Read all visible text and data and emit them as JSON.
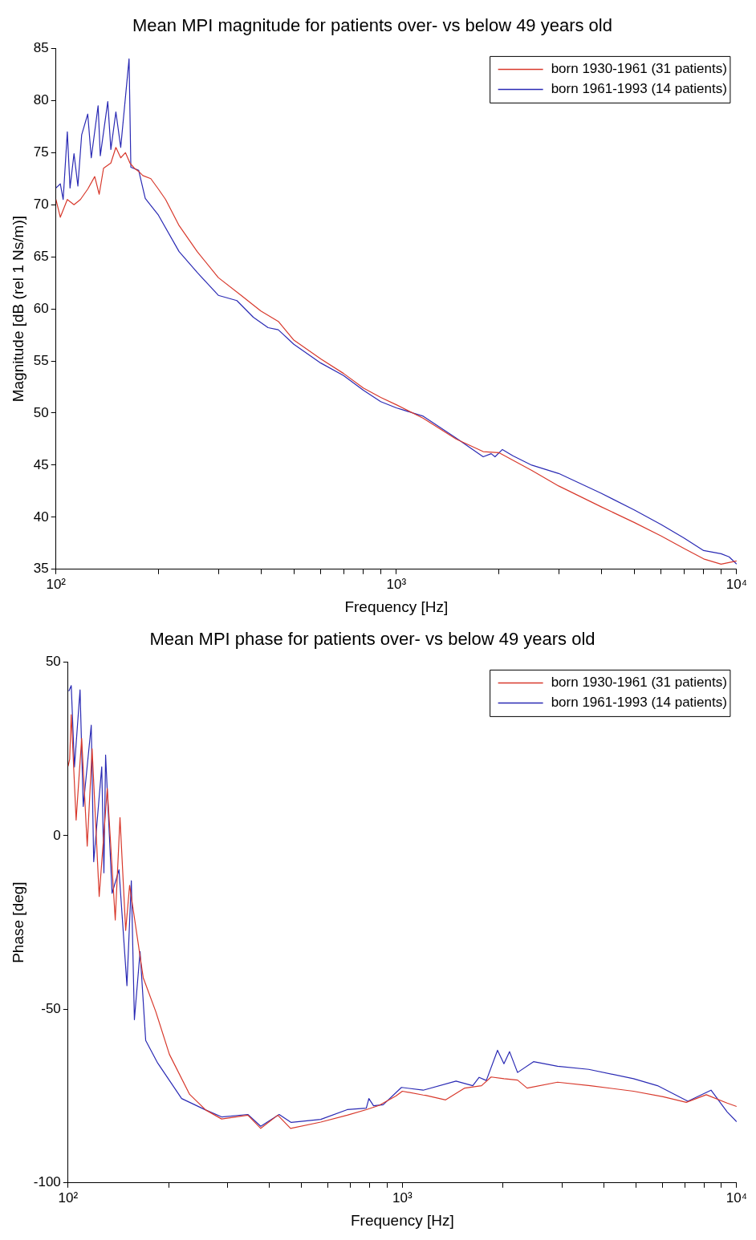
{
  "chart_data": [
    {
      "type": "line",
      "title": "Mean MPI magnitude for patients over- vs below 49 years old",
      "xlabel": "Frequency [Hz]",
      "ylabel": "Magnitude [dB (rel 1 Ns/m)]",
      "log": "x",
      "grid": false,
      "legend": "top right",
      "xlim": [
        100,
        10000
      ],
      "xticks": [
        {
          "value": 100,
          "label": "10²"
        },
        {
          "value": 200,
          "label": null
        },
        {
          "value": 300,
          "label": null
        },
        {
          "value": 400,
          "label": null
        },
        {
          "value": 500,
          "label": null
        },
        {
          "value": 600,
          "label": null
        },
        {
          "value": 700,
          "label": null
        },
        {
          "value": 800,
          "label": null
        },
        {
          "value": 900,
          "label": null
        },
        {
          "value": 1000,
          "label": "10³"
        },
        {
          "value": 2000,
          "label": null
        },
        {
          "value": 3000,
          "label": null
        },
        {
          "value": 4000,
          "label": null
        },
        {
          "value": 5000,
          "label": null
        },
        {
          "value": 6000,
          "label": null
        },
        {
          "value": 7000,
          "label": null
        },
        {
          "value": 8000,
          "label": null
        },
        {
          "value": 9000,
          "label": null
        },
        {
          "value": 10000,
          "label": "10⁴"
        }
      ],
      "ylim": [
        35,
        85
      ],
      "yticks": [
        35,
        40,
        45,
        50,
        55,
        60,
        65,
        70,
        75,
        80,
        85
      ],
      "series": [
        {
          "name": "born 1930-1961 (31 patients)",
          "color": "#d8392c",
          "x": [
            100,
            103,
            108,
            113,
            118,
            124,
            130,
            134,
            138,
            145,
            150,
            155,
            160,
            165,
            170,
            175,
            180,
            190,
            200,
            210,
            230,
            260,
            300,
            350,
            400,
            450,
            500,
            600,
            700,
            800,
            900,
            1000,
            1200,
            1500,
            1800,
            2000,
            2500,
            3000,
            4000,
            5000,
            6000,
            7000,
            8000,
            9000,
            10000
          ],
          "values": [
            70.5,
            68.8,
            70.5,
            70,
            70.5,
            71.5,
            72.7,
            71,
            73.5,
            74,
            75.5,
            74.5,
            75,
            74,
            73.5,
            73.2,
            72.8,
            72.5,
            71.5,
            70.5,
            68,
            65.5,
            63,
            61.3,
            59.8,
            58.8,
            57,
            55.2,
            53.8,
            52.4,
            51.5,
            50.8,
            49.5,
            47.5,
            46.3,
            46.2,
            44.5,
            43,
            41,
            39.5,
            38.2,
            37,
            36,
            35.5,
            35.8
          ]
        },
        {
          "name": "born 1961-1993 (14 patients)",
          "color": "#2a2ab4",
          "x": [
            100,
            103,
            105,
            108,
            110,
            113,
            116,
            119,
            124,
            127,
            133,
            135,
            142,
            145,
            150,
            155,
            164,
            166,
            175,
            183,
            200,
            230,
            260,
            300,
            340,
            380,
            420,
            450,
            500,
            600,
            700,
            800,
            900,
            1000,
            1200,
            1500,
            1800,
            1900,
            1950,
            2050,
            2200,
            2500,
            3000,
            4000,
            5000,
            6000,
            7000,
            8000,
            9000,
            9500,
            10000
          ],
          "values": [
            71.6,
            72,
            70.5,
            77,
            71.6,
            74.9,
            71.8,
            76.7,
            78.7,
            74.5,
            79.5,
            74.7,
            79.9,
            75.3,
            78.9,
            75.5,
            84,
            73.6,
            73.3,
            70.6,
            69,
            65.5,
            63.5,
            61.3,
            60.8,
            59.2,
            58.2,
            58,
            56.6,
            54.8,
            53.6,
            52.2,
            51.1,
            50.5,
            49.7,
            47.6,
            45.8,
            46.1,
            45.8,
            46.5,
            45.9,
            45,
            44.2,
            42.3,
            40.7,
            39.3,
            38,
            36.8,
            36.5,
            36.2,
            35.5
          ]
        }
      ]
    },
    {
      "type": "line",
      "title": "Mean MPI phase for patients over- vs below 49 years old",
      "xlabel": "Frequency [Hz]",
      "ylabel": "Phase [deg]",
      "log": "x",
      "grid": false,
      "legend": "top right",
      "xlim": [
        100,
        10000
      ],
      "xticks": [
        {
          "value": 100,
          "label": "10²"
        },
        {
          "value": 200,
          "label": null
        },
        {
          "value": 300,
          "label": null
        },
        {
          "value": 400,
          "label": null
        },
        {
          "value": 500,
          "label": null
        },
        {
          "value": 600,
          "label": null
        },
        {
          "value": 700,
          "label": null
        },
        {
          "value": 800,
          "label": null
        },
        {
          "value": 900,
          "label": null
        },
        {
          "value": 1000,
          "label": "10³"
        },
        {
          "value": 2000,
          "label": null
        },
        {
          "value": 3000,
          "label": null
        },
        {
          "value": 4000,
          "label": null
        },
        {
          "value": 5000,
          "label": null
        },
        {
          "value": 6000,
          "label": null
        },
        {
          "value": 7000,
          "label": null
        },
        {
          "value": 8000,
          "label": null
        },
        {
          "value": 9000,
          "label": null
        },
        {
          "value": 10000,
          "label": "10⁴"
        }
      ],
      "ylim": [
        -100,
        50
      ],
      "yticks": [
        -100,
        -50,
        0,
        50
      ],
      "series": [
        {
          "name": "born 1930-1961 (31 patients)",
          "color": "#d8392c",
          "x": [
            100,
            101.1,
            102.2,
            105.7,
            109.8,
            114.1,
            118,
            123.9,
            131,
            138.4,
            143,
            148.7,
            152.8,
            167.8,
            183,
            201,
            231,
            258,
            288,
            345,
            377,
            424,
            463,
            570,
            684,
            780,
            851,
            956,
            1000,
            1154,
            1173,
            1347,
            1537,
            1725,
            1843,
            2013,
            2211,
            2362,
            2912,
            3649,
            4914,
            6026,
            7070,
            8111,
            9361,
            10000
          ],
          "values": [
            20,
            22,
            34.8,
            4.5,
            28,
            -3,
            25,
            -17.5,
            13.6,
            -24.3,
            5.2,
            -27.3,
            -14.3,
            -40.9,
            -50.7,
            -63,
            -74.5,
            -79,
            -81.6,
            -80.5,
            -84.3,
            -80.5,
            -84.3,
            -82.5,
            -80.5,
            -78.9,
            -77.7,
            -75,
            -73.6,
            -74.7,
            -74.8,
            -76.1,
            -72.7,
            -72,
            -69.5,
            -70,
            -70.4,
            -72.7,
            -71,
            -72,
            -73.6,
            -75.2,
            -76.8,
            -74.6,
            -77,
            -78
          ]
        },
        {
          "name": "born 1961-1993 (14 patients)",
          "color": "#2a2ab4",
          "x": [
            100.5,
            102.2,
            104.5,
            108.6,
            111,
            117.3,
            119.3,
            126.1,
            128,
            129.5,
            135.4,
            142,
            150,
            154.6,
            157.9,
            164.2,
            170.7,
            185.4,
            218.6,
            258,
            288,
            345,
            377,
            428,
            465,
            570,
            684,
            780,
            794,
            820,
            876,
            994,
            1154,
            1447,
            1624,
            1697,
            1783,
            1926,
            2013,
            2092,
            2211,
            2468,
            2912,
            3609,
            4914,
            5797,
            7146,
            8382,
            9361,
            10000
          ],
          "values": [
            41.6,
            43.2,
            19.8,
            42,
            8.4,
            31.8,
            -7.5,
            19.8,
            -10.7,
            23.2,
            -16.6,
            -9.8,
            -43.2,
            -13,
            -53,
            -33.4,
            -59,
            -65.5,
            -75.7,
            -79,
            -81,
            -80.3,
            -83.7,
            -80.3,
            -82.6,
            -81.7,
            -78.9,
            -78.5,
            -75.7,
            -77.8,
            -77.5,
            -72.5,
            -73.3,
            -70.7,
            -72,
            -69.6,
            -70.5,
            -61.8,
            -65.7,
            -62.2,
            -68.2,
            -65.1,
            -66.4,
            -67.3,
            -70,
            -72,
            -76.5,
            -73.3,
            -79.5,
            -82.4
          ]
        }
      ]
    }
  ]
}
